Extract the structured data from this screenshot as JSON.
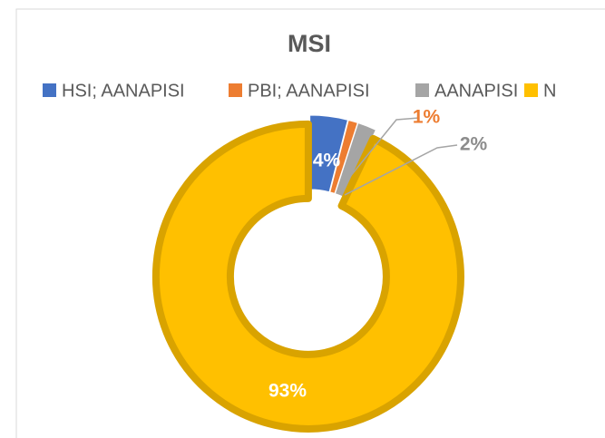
{
  "chart_data": {
    "type": "donut",
    "title": "MSI",
    "categories": [
      "HSI; AANAPISI",
      "PBI; AANAPISI",
      "AANAPISI",
      "N"
    ],
    "values": [
      4,
      1,
      2,
      93
    ],
    "value_labels": [
      "4%",
      "1%",
      "2%",
      "93%"
    ],
    "colors": [
      "#4472c4",
      "#ed7d31",
      "#a5a5a5",
      "#ffc000"
    ],
    "legend": "top"
  }
}
